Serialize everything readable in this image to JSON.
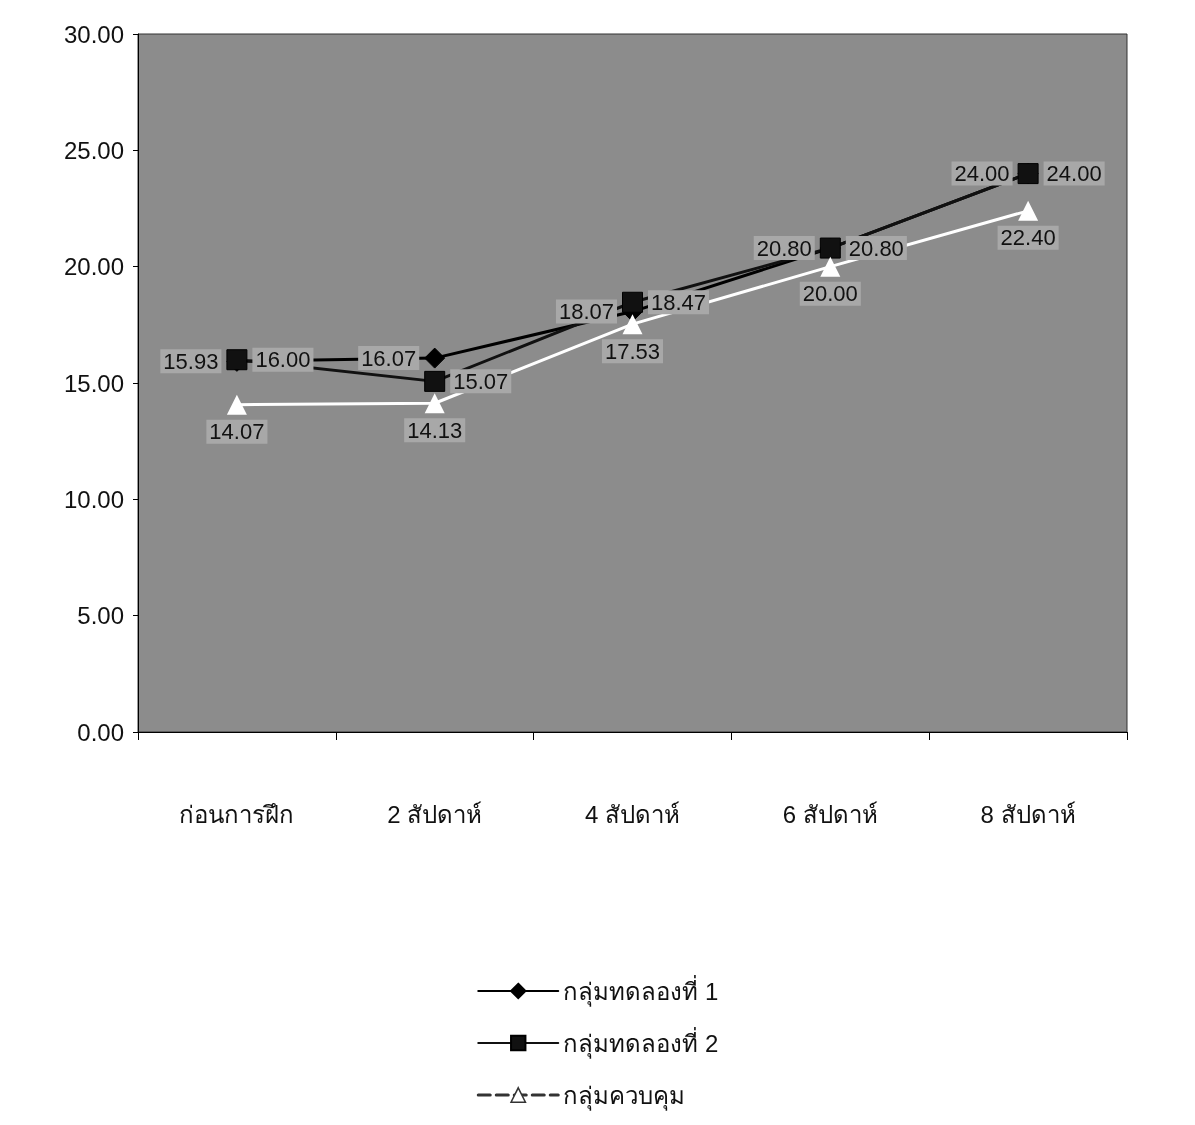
{
  "chart_data": {
    "type": "line",
    "categories": [
      "ก่อนการฝึก",
      "2 สัปดาห์",
      "4 สัปดาห์",
      "6 สัปดาห์",
      "8 สัปดาห์"
    ],
    "series": [
      {
        "name": "กลุ่มทดลองที่ 1",
        "color": "#000000",
        "marker": "diamond",
        "values": [
          15.93,
          16.07,
          18.07,
          20.8,
          24.0
        ],
        "value_labels": [
          "15.93",
          "16.07",
          "18.07",
          "20.80",
          "24.00"
        ]
      },
      {
        "name": "กลุ่มทดลองที่ 2",
        "color": "#111111",
        "marker": "square",
        "values": [
          16.0,
          15.07,
          18.47,
          20.8,
          24.0
        ],
        "value_labels": [
          "16.00",
          "15.07",
          "18.47",
          "20.80",
          "24.00"
        ]
      },
      {
        "name": "กลุ่มควบคุม",
        "color": "#ffffff",
        "marker": "triangle",
        "values": [
          14.07,
          14.13,
          17.53,
          20.0,
          22.4
        ],
        "value_labels": [
          "14.07",
          "14.13",
          "17.53",
          "20.00",
          "22.40"
        ]
      }
    ],
    "ylim": [
      0,
      30
    ],
    "yticks": [
      {
        "value": 0,
        "label": "0.00"
      },
      {
        "value": 5,
        "label": "5.00"
      },
      {
        "value": 10,
        "label": "10.00"
      },
      {
        "value": 15,
        "label": "15.00"
      },
      {
        "value": 20,
        "label": "20.00"
      },
      {
        "value": 25,
        "label": "25.00"
      },
      {
        "value": 30,
        "label": "30.00"
      }
    ],
    "grid": false,
    "legend": "bottom"
  }
}
